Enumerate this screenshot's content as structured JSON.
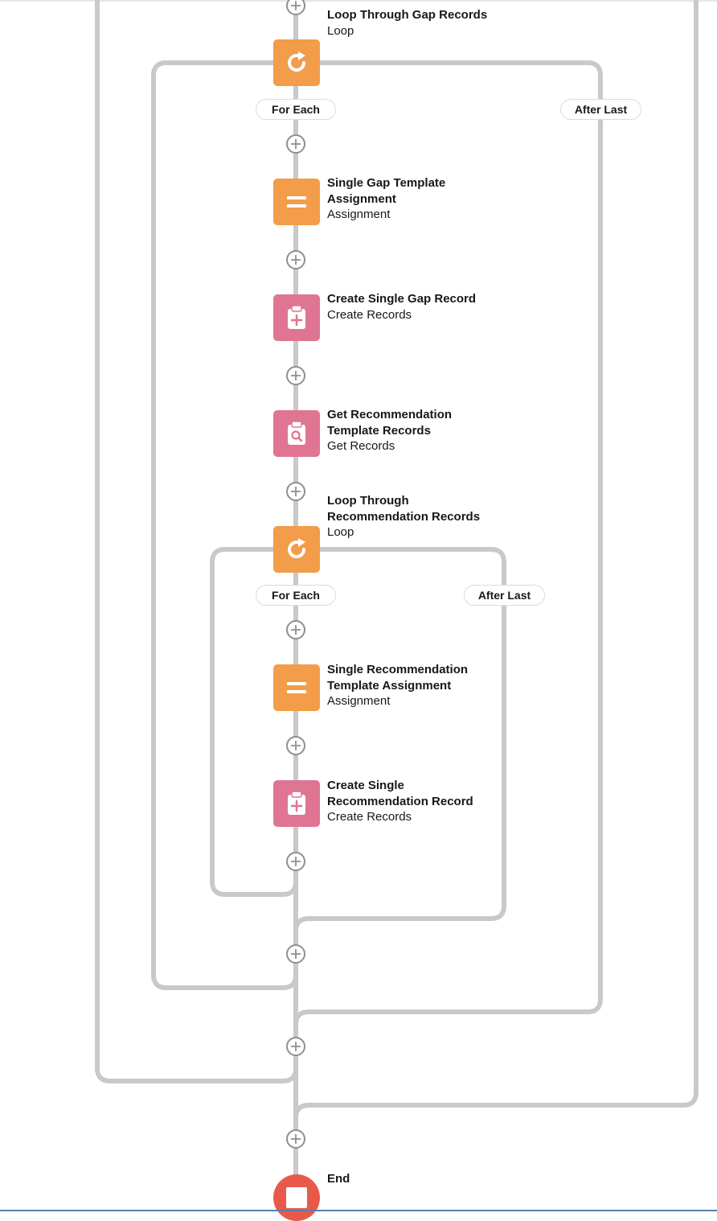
{
  "colors": {
    "connector": "#c9c9c9",
    "loop_and_assignment": "#f39c49",
    "records": "#e07493",
    "end": "#e9594a",
    "add_button_border": "#8f8f8f"
  },
  "nodes": [
    {
      "id": "loop-gap",
      "title": "Loop Through Gap Records",
      "type": "Loop",
      "icon": "loop-icon"
    },
    {
      "id": "assign-gap",
      "title": "Single Gap Template Assignment",
      "type": "Assignment",
      "icon": "assignment-icon"
    },
    {
      "id": "create-gap",
      "title": "Create Single Gap Record",
      "type": "Create Records",
      "icon": "create-records-icon"
    },
    {
      "id": "get-rec",
      "title": "Get Recommendation Template Records",
      "type": "Get Records",
      "icon": "get-records-icon"
    },
    {
      "id": "loop-rec",
      "title": "Loop Through Recommendation Records",
      "type": "Loop",
      "icon": "loop-icon"
    },
    {
      "id": "assign-rec",
      "title": "Single Recommendation Template Assignment",
      "type": "Assignment",
      "icon": "assignment-icon"
    },
    {
      "id": "create-rec",
      "title": "Create Single Recommendation Record",
      "type": "Create Records",
      "icon": "create-records-icon"
    },
    {
      "id": "end",
      "title": "End",
      "icon": "end-icon"
    }
  ],
  "labels": {
    "n0_l1": "Loop Through Gap Records",
    "n0_l2": "Loop",
    "n1_l1": "Single Gap Template",
    "n1_l2": "Assignment",
    "n1_l3": "Assignment",
    "n2_l1": "Create Single Gap Record",
    "n2_l2": "Create Records",
    "n3_l1": "Get Recommendation",
    "n3_l2": "Template Records",
    "n3_l3": "Get Records",
    "n4_l1": "Loop Through",
    "n4_l2": "Recommendation Records",
    "n4_l3": "Loop",
    "n5_l1": "Single Recommendation",
    "n5_l2": "Template Assignment",
    "n5_l3": "Assignment",
    "n6_l1": "Create Single",
    "n6_l2": "Recommendation Record",
    "n6_l3": "Create Records",
    "n7_l1": "End"
  },
  "branches": {
    "outer_for_each": "For Each",
    "outer_after_last": "After Last",
    "inner_for_each": "For Each",
    "inner_after_last": "After Last"
  }
}
